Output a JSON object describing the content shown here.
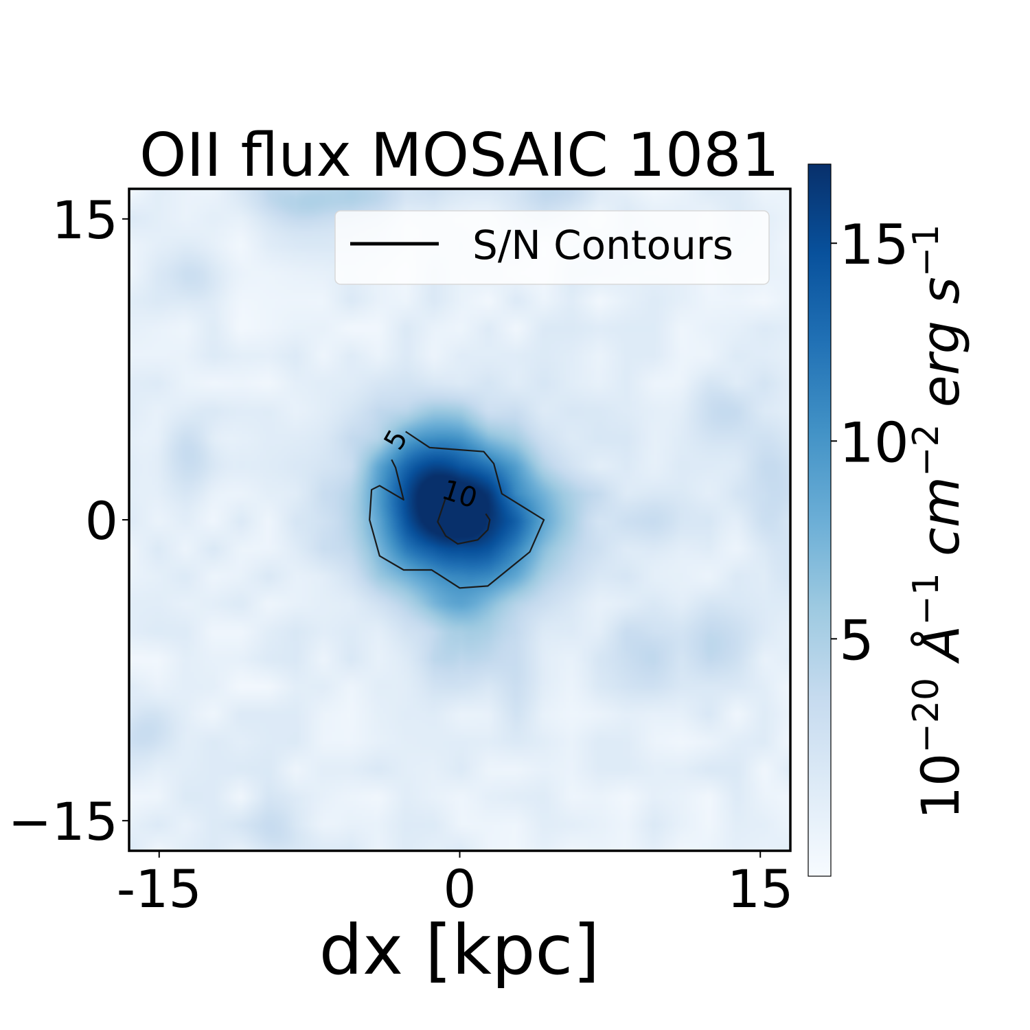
{
  "chart_data": {
    "type": "heatmap",
    "title": "OII flux MOSAIC 1081",
    "xlabel": "dx [kpc]",
    "ylabel": "",
    "xlim": [
      -16.5,
      16.5
    ],
    "ylim": [
      -16.5,
      16.5
    ],
    "x_ticks": [
      {
        "value": -15,
        "label": "-15"
      },
      {
        "value": 0,
        "label": "0"
      },
      {
        "value": 15,
        "label": "15"
      }
    ],
    "y_ticks": [
      {
        "value": 15,
        "label": "15"
      },
      {
        "value": 0,
        "label": "0"
      },
      {
        "value": -15,
        "label": "−15"
      }
    ],
    "colorbar": {
      "label_base": "10",
      "label_exp": "−20",
      "label_unit1": "Å",
      "label_unit1_exp": "−1",
      "label_unit2": "cm",
      "label_unit2_exp": "−2",
      "label_unit3": "erg",
      "label_unit4": "s",
      "label_unit4_exp": "−1",
      "range": [
        -1,
        17
      ],
      "ticks": [
        {
          "value": 5,
          "label": "5"
        },
        {
          "value": 10,
          "label": "10"
        },
        {
          "value": 15,
          "label": "15"
        }
      ],
      "colormap": "Blues",
      "colors": [
        "#f7fbff",
        "#deebf7",
        "#c6dbef",
        "#9ecae1",
        "#6baed6",
        "#4292c6",
        "#2171b5",
        "#08519c",
        "#08306b"
      ]
    },
    "legend": {
      "placement": "upper-right",
      "entries": [
        {
          "label": "S/N Contours",
          "color": "#000000"
        }
      ]
    },
    "sources": [
      {
        "x": 0.0,
        "y": 0.0,
        "peak": 17.0,
        "sigma_x": 3.4,
        "sigma_y": 2.8
      },
      {
        "x": -1.5,
        "y": 3.0,
        "peak": 4.5,
        "sigma_x": 2.0,
        "sigma_y": 2.0
      },
      {
        "x": 0.0,
        "y": -6.2,
        "peak": 3.5,
        "sigma_x": 1.2,
        "sigma_y": 1.8
      },
      {
        "x": -8.0,
        "y": 16.0,
        "peak": 4.0,
        "sigma_x": 1.6,
        "sigma_y": 1.0
      },
      {
        "x": -4.0,
        "y": 16.3,
        "peak": 3.5,
        "sigma_x": 1.8,
        "sigma_y": 0.9
      },
      {
        "x": 5.0,
        "y": 16.3,
        "peak": 2.5,
        "sigma_x": 2.0,
        "sigma_y": 0.8
      },
      {
        "x": -13.5,
        "y": 3.2,
        "peak": 3.2,
        "sigma_x": 1.0,
        "sigma_y": 1.4
      },
      {
        "x": 9.5,
        "y": -6.5,
        "peak": 2.8,
        "sigma_x": 1.6,
        "sigma_y": 1.6
      },
      {
        "x": 13.0,
        "y": -6.0,
        "peak": 2.5,
        "sigma_x": 1.5,
        "sigma_y": 1.5
      },
      {
        "x": 15.5,
        "y": 1.0,
        "peak": 2.4,
        "sigma_x": 1.0,
        "sigma_y": 3.0
      },
      {
        "x": 13.0,
        "y": 5.5,
        "peak": 2.6,
        "sigma_x": 1.2,
        "sigma_y": 1.2
      },
      {
        "x": -9.0,
        "y": -15.5,
        "peak": 2.6,
        "sigma_x": 1.2,
        "sigma_y": 1.0
      },
      {
        "x": -15.5,
        "y": -10.5,
        "peak": 2.5,
        "sigma_x": 1.0,
        "sigma_y": 1.0
      },
      {
        "x": 10.0,
        "y": 0.0,
        "peak": 2.0,
        "sigma_x": 1.5,
        "sigma_y": 1.0
      },
      {
        "x": -13.0,
        "y": 12.0,
        "peak": 2.0,
        "sigma_x": 1.0,
        "sigma_y": 1.0
      },
      {
        "x": 3.0,
        "y": -8.0,
        "peak": 1.8,
        "sigma_x": 1.5,
        "sigma_y": 1.5
      }
    ],
    "contours": [
      {
        "level": "5",
        "label_at": [
          -3.2,
          4.0
        ],
        "points": [
          [
            -2.7,
            4.4
          ],
          [
            -1.5,
            3.6
          ],
          [
            1.2,
            3.4
          ],
          [
            1.7,
            2.8
          ],
          [
            2.1,
            1.3
          ],
          [
            4.2,
            0.0
          ],
          [
            3.5,
            -1.6
          ],
          [
            1.4,
            -3.3
          ],
          [
            0.0,
            -3.4
          ],
          [
            -1.4,
            -2.5
          ],
          [
            -2.8,
            -2.5
          ],
          [
            -4.0,
            -1.8
          ],
          [
            -4.5,
            0.0
          ],
          [
            -4.4,
            1.5
          ],
          [
            -4.0,
            1.7
          ],
          [
            -2.8,
            1.0
          ],
          [
            -3.2,
            2.6
          ],
          [
            -3.4,
            3.0
          ]
        ]
      },
      {
        "level": "10",
        "label_at": [
          0.0,
          1.3
        ],
        "points": [
          [
            -0.7,
            1.1
          ],
          [
            -1.1,
            -0.1
          ],
          [
            -0.7,
            -0.8
          ],
          [
            -0.1,
            -1.2
          ],
          [
            0.9,
            -1.0
          ],
          [
            1.4,
            -0.5
          ],
          [
            1.5,
            0.0
          ],
          [
            1.3,
            0.3
          ]
        ]
      }
    ]
  }
}
